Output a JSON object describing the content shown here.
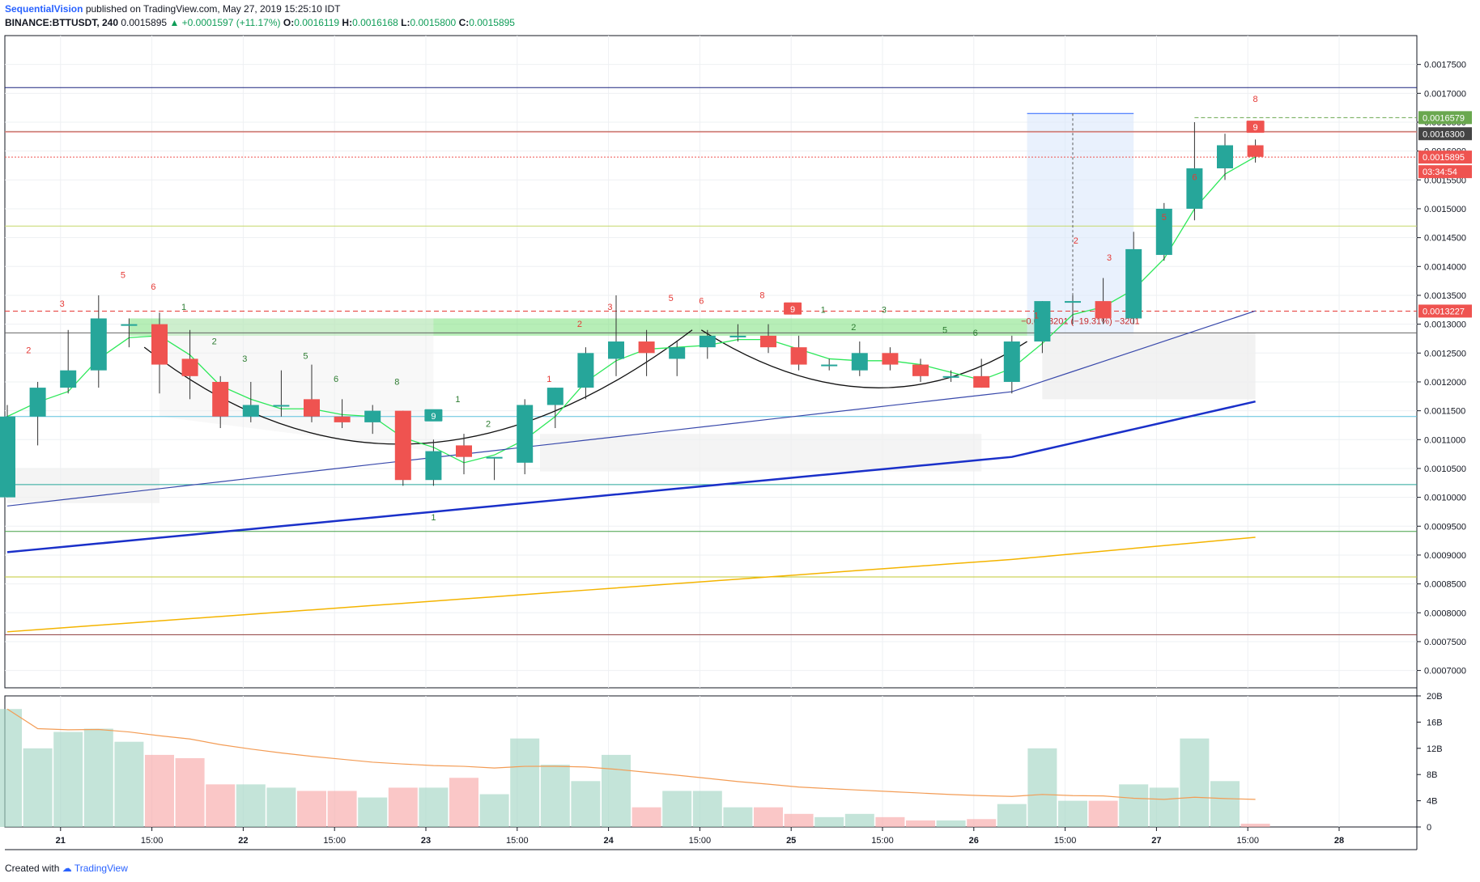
{
  "header": {
    "author": "SequentialVision",
    "published": "published on TradingView.com, May 27, 2019 15:25:10 IDT",
    "symbol": "BINANCE:BTTUSDT, 240",
    "last": "0.0015895",
    "change": "▲ +0.0001597 (+11.17%)",
    "open_label": "O:",
    "open": "0.0016119",
    "high_label": "H:",
    "high": "0.0016168",
    "low_label": "L:",
    "low": "0.0015800",
    "close_label": "C:",
    "close": "0.0015895"
  },
  "footer": {
    "created_with": "Created with",
    "brand": "TradingView"
  },
  "chart_data": {
    "type": "candlestick",
    "interval": "240",
    "price_axis": {
      "range": [
        0.00067,
        0.0018
      ],
      "ticks": [
        "0.0017500",
        "0.0017000",
        "0.0016500",
        "0.0016000",
        "0.0015500",
        "0.0015000",
        "0.0014500",
        "0.0014000",
        "0.0013500",
        "0.0013000",
        "0.0012500",
        "0.0012000",
        "0.0011500",
        "0.0011000",
        "0.0010500",
        "0.0010000",
        "0.0009500",
        "0.0009000",
        "0.0008500",
        "0.0008000",
        "0.0007500",
        "0.0007000"
      ]
    },
    "volume_axis": {
      "range": [
        0,
        20
      ],
      "ticks": [
        "20B",
        "16B",
        "12B",
        "8B",
        "4B",
        "0"
      ]
    },
    "time_labels": [
      {
        "i": 1.75,
        "label": "21"
      },
      {
        "i": 4.75,
        "label": "15:00"
      },
      {
        "i": 7.75,
        "label": "22"
      },
      {
        "i": 10.75,
        "label": "15:00"
      },
      {
        "i": 13.75,
        "label": "23"
      },
      {
        "i": 16.75,
        "label": "15:00"
      },
      {
        "i": 19.75,
        "label": "24"
      },
      {
        "i": 22.75,
        "label": "15:00"
      },
      {
        "i": 25.75,
        "label": "25"
      },
      {
        "i": 28.75,
        "label": "15:00"
      },
      {
        "i": 31.75,
        "label": "26"
      },
      {
        "i": 34.75,
        "label": "15:00"
      },
      {
        "i": 37.75,
        "label": "27"
      },
      {
        "i": 40.75,
        "label": "15:00"
      },
      {
        "i": 43.75,
        "label": "28"
      }
    ],
    "candles": [
      {
        "o": 0.001,
        "h": 0.00116,
        "l": 0.001,
        "c": 0.00114,
        "v": 18
      },
      {
        "o": 0.00114,
        "h": 0.0012,
        "l": 0.00109,
        "c": 0.00119,
        "v": 12
      },
      {
        "o": 0.00119,
        "h": 0.00129,
        "l": 0.00118,
        "c": 0.00122,
        "v": 14.5
      },
      {
        "o": 0.00122,
        "h": 0.00135,
        "l": 0.00119,
        "c": 0.00131,
        "v": 15
      },
      {
        "o": 0.0013,
        "h": 0.00131,
        "l": 0.00126,
        "c": 0.0013,
        "v": 13
      },
      {
        "o": 0.0013,
        "h": 0.00132,
        "l": 0.00118,
        "c": 0.00123,
        "v": 11
      },
      {
        "o": 0.00124,
        "h": 0.00129,
        "l": 0.00117,
        "c": 0.00121,
        "v": 10.5
      },
      {
        "o": 0.0012,
        "h": 0.00121,
        "l": 0.00112,
        "c": 0.00114,
        "v": 6.5
      },
      {
        "o": 0.00114,
        "h": 0.0012,
        "l": 0.00113,
        "c": 0.00116,
        "v": 6.5
      },
      {
        "o": 0.00116,
        "h": 0.00122,
        "l": 0.00114,
        "c": 0.00116,
        "v": 6
      },
      {
        "o": 0.00117,
        "h": 0.00123,
        "l": 0.00113,
        "c": 0.00114,
        "v": 5.5
      },
      {
        "o": 0.00114,
        "h": 0.00117,
        "l": 0.00112,
        "c": 0.00113,
        "v": 5.5
      },
      {
        "o": 0.00113,
        "h": 0.00116,
        "l": 0.00111,
        "c": 0.00115,
        "v": 4.5
      },
      {
        "o": 0.00115,
        "h": 0.00115,
        "l": 0.00102,
        "c": 0.00103,
        "v": 6
      },
      {
        "o": 0.00103,
        "h": 0.0011,
        "l": 0.00102,
        "c": 0.00108,
        "v": 6
      },
      {
        "o": 0.00109,
        "h": 0.00111,
        "l": 0.00104,
        "c": 0.00107,
        "v": 7.5
      },
      {
        "o": 0.00107,
        "h": 0.00107,
        "l": 0.00103,
        "c": 0.00107,
        "v": 5
      },
      {
        "o": 0.00106,
        "h": 0.00117,
        "l": 0.00104,
        "c": 0.00116,
        "v": 13.5
      },
      {
        "o": 0.00116,
        "h": 0.00119,
        "l": 0.00112,
        "c": 0.00119,
        "v": 9.5
      },
      {
        "o": 0.00119,
        "h": 0.00126,
        "l": 0.00117,
        "c": 0.00125,
        "v": 7
      },
      {
        "o": 0.00124,
        "h": 0.00135,
        "l": 0.00121,
        "c": 0.00127,
        "v": 11
      },
      {
        "o": 0.00127,
        "h": 0.00129,
        "l": 0.00121,
        "c": 0.00125,
        "v": 3
      },
      {
        "o": 0.00124,
        "h": 0.00127,
        "l": 0.00121,
        "c": 0.00126,
        "v": 5.5
      },
      {
        "o": 0.00126,
        "h": 0.00129,
        "l": 0.00124,
        "c": 0.00128,
        "v": 5.5
      },
      {
        "o": 0.00128,
        "h": 0.0013,
        "l": 0.00127,
        "c": 0.00128,
        "v": 3
      },
      {
        "o": 0.00128,
        "h": 0.0013,
        "l": 0.00125,
        "c": 0.00126,
        "v": 3
      },
      {
        "o": 0.00126,
        "h": 0.00128,
        "l": 0.00122,
        "c": 0.00123,
        "v": 2
      },
      {
        "o": 0.00123,
        "h": 0.00124,
        "l": 0.00122,
        "c": 0.00123,
        "v": 1.5
      },
      {
        "o": 0.00122,
        "h": 0.00127,
        "l": 0.00121,
        "c": 0.00125,
        "v": 2
      },
      {
        "o": 0.00125,
        "h": 0.00126,
        "l": 0.00122,
        "c": 0.00123,
        "v": 1.5
      },
      {
        "o": 0.00123,
        "h": 0.00124,
        "l": 0.0012,
        "c": 0.00121,
        "v": 1
      },
      {
        "o": 0.00121,
        "h": 0.00122,
        "l": 0.0012,
        "c": 0.00121,
        "v": 1
      },
      {
        "o": 0.00121,
        "h": 0.00124,
        "l": 0.00119,
        "c": 0.00119,
        "v": 1.2
      },
      {
        "o": 0.0012,
        "h": 0.00128,
        "l": 0.00118,
        "c": 0.00127,
        "v": 3.5
      },
      {
        "o": 0.00127,
        "h": 0.00134,
        "l": 0.00125,
        "c": 0.00134,
        "v": 12
      },
      {
        "o": 0.00134,
        "h": 0.00135,
        "l": 0.0013,
        "c": 0.00134,
        "v": 4
      },
      {
        "o": 0.00134,
        "h": 0.00138,
        "l": 0.0013,
        "c": 0.00131,
        "v": 4
      },
      {
        "o": 0.00131,
        "h": 0.00146,
        "l": 0.0013,
        "c": 0.00143,
        "v": 6.5
      },
      {
        "o": 0.00142,
        "h": 0.00151,
        "l": 0.00141,
        "c": 0.0015,
        "v": 6
      },
      {
        "o": 0.0015,
        "h": 0.00165,
        "l": 0.00148,
        "c": 0.00157,
        "v": 13.5
      },
      {
        "o": 0.00157,
        "h": 0.00163,
        "l": 0.00155,
        "c": 0.00161,
        "v": 7
      },
      {
        "o": 0.00161,
        "h": 0.00162,
        "l": 0.00158,
        "c": 0.00159,
        "v": 0.5
      }
    ],
    "price_tags": [
      {
        "value": 0.0016579,
        "label": "0.0016579",
        "color": "#6aa84f"
      },
      {
        "value": 0.00163,
        "label": "0.0016300",
        "color": "#444444"
      },
      {
        "value": 0.0015895,
        "label": "0.0015895",
        "color": "#ef5350"
      },
      {
        "value": 0.0013227,
        "label": "0.0013227",
        "color": "#ef5350"
      }
    ],
    "countdown": "03:34:54",
    "measure_label": "−0.0003201 (−19.31%) −3201",
    "td_counts_red": [
      {
        "i": 0.7,
        "y": 0.00125,
        "t": "2"
      },
      {
        "i": 1.8,
        "y": 0.00133,
        "t": "3"
      },
      {
        "i": 3.8,
        "y": 0.00138,
        "t": "5"
      },
      {
        "i": 4.8,
        "y": 0.00136,
        "t": "6"
      },
      {
        "i": 17.8,
        "y": 0.0012,
        "t": "1"
      },
      {
        "i": 18.8,
        "y": 0.001295,
        "t": "2"
      },
      {
        "i": 19.8,
        "y": 0.001325,
        "t": "3"
      },
      {
        "i": 21.8,
        "y": 0.00134,
        "t": "5"
      },
      {
        "i": 22.8,
        "y": 0.001335,
        "t": "6"
      },
      {
        "i": 24.8,
        "y": 0.001345,
        "t": "8"
      },
      {
        "i": 33.8,
        "y": 0.00131,
        "t": "1"
      },
      {
        "i": 35.1,
        "y": 0.00144,
        "t": "2"
      },
      {
        "i": 36.2,
        "y": 0.00141,
        "t": "3"
      },
      {
        "i": 38.0,
        "y": 0.00148,
        "t": "5"
      },
      {
        "i": 39.0,
        "y": 0.00155,
        "t": "6"
      },
      {
        "i": 41.0,
        "y": 0.001685,
        "t": "8"
      }
    ],
    "td_counts_green": [
      {
        "i": 5.8,
        "y": 0.001325,
        "t": "1"
      },
      {
        "i": 6.8,
        "y": 0.001265,
        "t": "2"
      },
      {
        "i": 7.8,
        "y": 0.001235,
        "t": "3"
      },
      {
        "i": 9.8,
        "y": 0.00124,
        "t": "5"
      },
      {
        "i": 10.8,
        "y": 0.0012,
        "t": "6"
      },
      {
        "i": 12.8,
        "y": 0.001195,
        "t": "8"
      },
      {
        "i": 14.8,
        "y": 0.001165,
        "t": "1"
      },
      {
        "i": 15.8,
        "y": 0.001122,
        "t": "2"
      },
      {
        "i": 26.8,
        "y": 0.00132,
        "t": "1"
      },
      {
        "i": 27.8,
        "y": 0.00129,
        "t": "2"
      },
      {
        "i": 28.8,
        "y": 0.00132,
        "t": "3"
      },
      {
        "i": 30.8,
        "y": 0.001285,
        "t": "5"
      },
      {
        "i": 31.8,
        "y": 0.00128,
        "t": "6"
      },
      {
        "i": 14.0,
        "y": 0.00096,
        "t": "1"
      }
    ],
    "td_nine_tags": [
      {
        "i": 14.0,
        "y": 0.00114,
        "t": "9",
        "color": "#26a69a"
      },
      {
        "i": 25.8,
        "y": 0.001325,
        "t": "9",
        "color": "#ef5350"
      },
      {
        "i": 41.0,
        "y": 0.00164,
        "t": "9",
        "color": "#ef5350"
      }
    ]
  }
}
